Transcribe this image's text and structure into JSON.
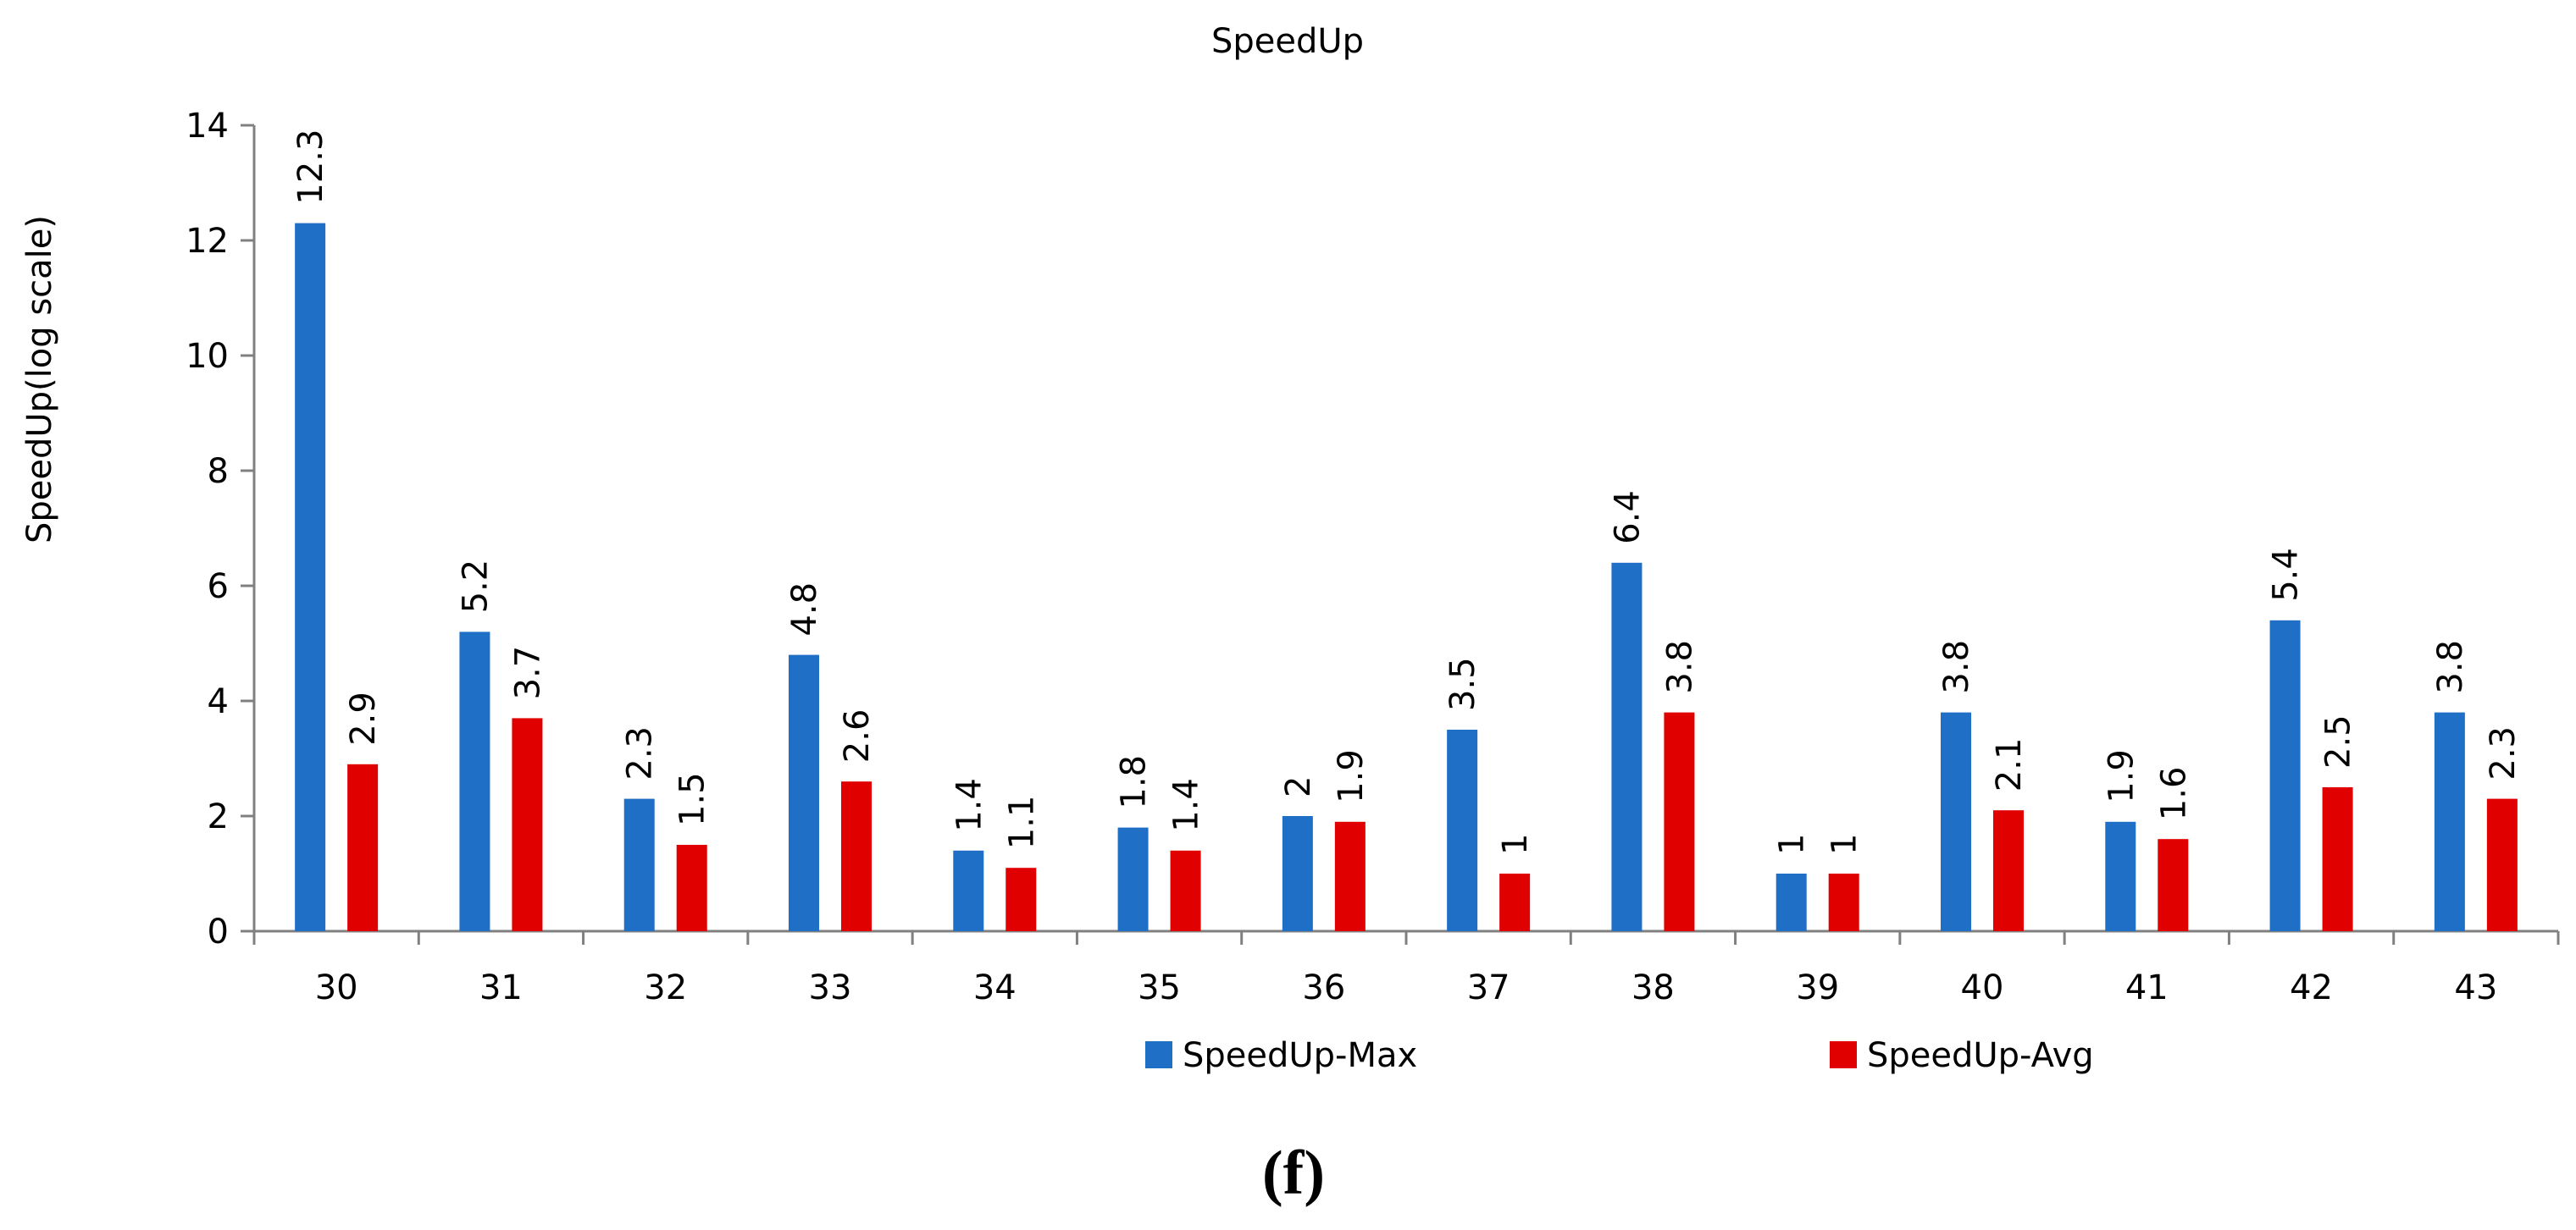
{
  "chart_data": {
    "type": "bar",
    "title": "SpeedUp",
    "xlabel": "",
    "ylabel": "SpeedUp(log scale)",
    "ylim": [
      0,
      14
    ],
    "yticks": [
      "0",
      "2",
      "4",
      "6",
      "8",
      "10",
      "12",
      "14"
    ],
    "categories": [
      "30",
      "31",
      "32",
      "33",
      "34",
      "35",
      "36",
      "37",
      "38",
      "39",
      "40",
      "41",
      "42",
      "43"
    ],
    "series": [
      {
        "name": "SpeedUp-Max",
        "color": "#1f6fc6",
        "values": [
          12.3,
          5.2,
          2.3,
          4.8,
          1.4,
          1.8,
          2,
          3.5,
          6.4,
          1,
          3.8,
          1.9,
          5.4,
          3.8
        ],
        "labels": [
          "12.3",
          "5.2",
          "2.3",
          "4.8",
          "1.4",
          "1.8",
          "2",
          "3.5",
          "6.4",
          "1",
          "3.8",
          "1.9",
          "5.4",
          "3.8"
        ]
      },
      {
        "name": "SpeedUp-Avg",
        "color": "#e00000",
        "values": [
          2.9,
          3.7,
          1.5,
          2.6,
          1.1,
          1.4,
          1.9,
          1,
          3.8,
          1,
          2.1,
          1.6,
          2.5,
          2.3
        ],
        "labels": [
          "2.9",
          "3.7",
          "1.5",
          "2.6",
          "1.1",
          "1.4",
          "1.9",
          "1",
          "3.8",
          "1",
          "2.1",
          "1.6",
          "2.5",
          "2.3"
        ]
      }
    ],
    "legend_position": "bottom",
    "grid": false
  },
  "caption": "(f)"
}
